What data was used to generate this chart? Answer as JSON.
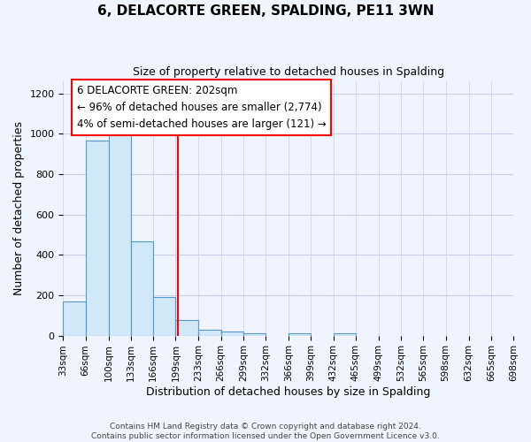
{
  "title": "6, DELACORTE GREEN, SPALDING, PE11 3WN",
  "subtitle": "Size of property relative to detached houses in Spalding",
  "xlabel": "Distribution of detached houses by size in Spalding",
  "ylabel": "Number of detached properties",
  "bin_edges": [
    33,
    66,
    100,
    133,
    166,
    199,
    233,
    266,
    299,
    332,
    366,
    399,
    432,
    465,
    499,
    532,
    565,
    598,
    632,
    665,
    698
  ],
  "bar_heights": [
    170,
    965,
    1000,
    465,
    190,
    75,
    27,
    20,
    12,
    0,
    10,
    0,
    10,
    0,
    0,
    0,
    0,
    0,
    0,
    0
  ],
  "bar_color": "#d0e8f8",
  "bar_edgecolor": "#5599cc",
  "red_line_x": 202,
  "annotation_lines": [
    "6 DELACORTE GREEN: 202sqm",
    "← 96% of detached houses are smaller (2,774)",
    "4% of semi-detached houses are larger (121) →"
  ],
  "annotation_fontsize": 8.5,
  "ylim": [
    0,
    1260
  ],
  "yticks": [
    0,
    200,
    400,
    600,
    800,
    1000,
    1200
  ],
  "tick_labels": [
    "33sqm",
    "66sqm",
    "100sqm",
    "133sqm",
    "166sqm",
    "199sqm",
    "233sqm",
    "266sqm",
    "299sqm",
    "332sqm",
    "366sqm",
    "399sqm",
    "432sqm",
    "465sqm",
    "499sqm",
    "532sqm",
    "565sqm",
    "598sqm",
    "632sqm",
    "665sqm",
    "698sqm"
  ],
  "footer_lines": [
    "Contains HM Land Registry data © Crown copyright and database right 2024.",
    "Contains public sector information licensed under the Open Government Licence v3.0."
  ],
  "bg_color": "#f0f4ff",
  "grid_color": "#c8d0e8"
}
